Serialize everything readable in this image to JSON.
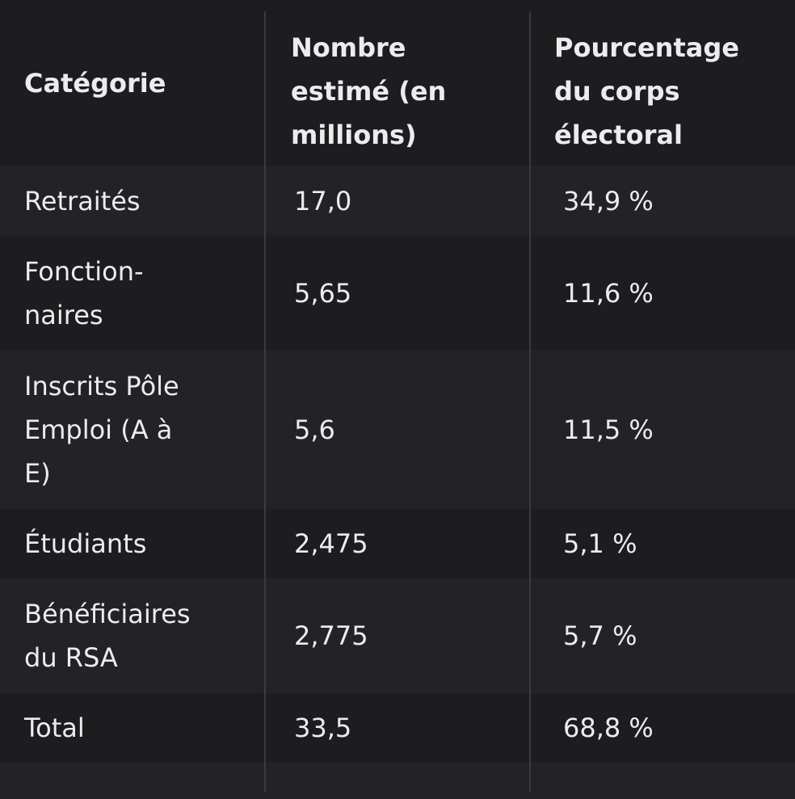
{
  "table": {
    "headers": [
      "Catégorie",
      "Nombre\nestimé (en\nmillions)",
      "Pourcentage\ndu corps\nélectoral"
    ],
    "rows": [
      [
        "Retraités",
        "17,0",
        "34,9 %"
      ],
      [
        "Fonction-\nnaires",
        "5,65",
        "11,6 %"
      ],
      [
        "Inscrits Pôle\nEmploi (A à\nE)",
        "5,6",
        "11,5 %"
      ],
      [
        "Étudiants",
        "2,475",
        "5,1 %"
      ],
      [
        "Bénéficiaires\ndu RSA",
        "2,775",
        "5,7 %"
      ],
      [
        "Total",
        "33,5",
        "68,8 %"
      ]
    ]
  }
}
